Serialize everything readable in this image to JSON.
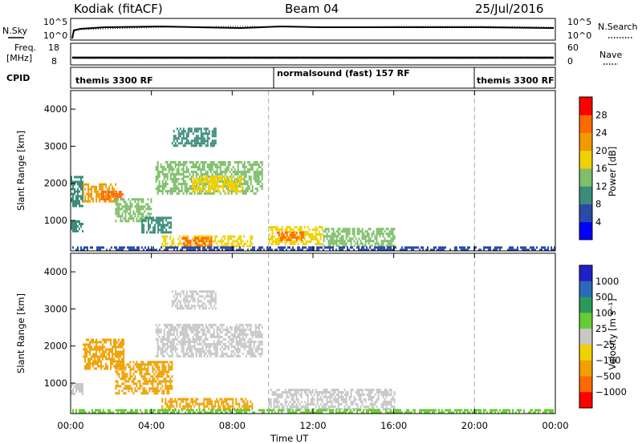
{
  "header": {
    "station": "Kodiak (fitACF)",
    "beam": "Beam 04",
    "date": "25/Jul/2016"
  },
  "strips": {
    "nsky_label": "N.Sky",
    "nsky_ticks": [
      "10^5",
      "10^0"
    ],
    "nsearch_label": "N.Search",
    "nsearch_ticks": [
      "10^5",
      "10^0"
    ],
    "freq_label_1": "Freq.",
    "freq_label_2": "[MHz]",
    "freq_ticks": [
      "18",
      "8"
    ],
    "nave_label": "Nave",
    "nave_ticks": [
      "60",
      "0"
    ],
    "cpid_label": "CPID",
    "modes": [
      {
        "name": "themis 3300 RF",
        "start_h": 0,
        "end_h": 9.8
      },
      {
        "name": "normalsound (fast) 157 RF",
        "start_h": 9.8,
        "end_h": 20
      },
      {
        "name": "themis 3300 RF",
        "start_h": 20,
        "end_h": 24
      }
    ]
  },
  "axes": {
    "ylabel": "Slant Range [km]",
    "yticks": [
      "1000",
      "2000",
      "3000",
      "4000"
    ],
    "xticks": [
      "00:00",
      "04:00",
      "08:00",
      "12:00",
      "16:00",
      "20:00",
      "00:00"
    ],
    "xlabel": "Time UT"
  },
  "power_colorbar": {
    "label": "Power [dB]",
    "ticks": [
      "4",
      "8",
      "12",
      "16",
      "20",
      "24",
      "28"
    ],
    "colors": [
      "#0000ff",
      "#2a4aa8",
      "#3b8c7a",
      "#7fbf6a",
      "#f0d000",
      "#f09a00",
      "#ff6a00",
      "#ff0000"
    ]
  },
  "velocity_colorbar": {
    "label": "Velocity [m s⁻¹]",
    "ticks": [
      "1000",
      "500",
      "100",
      "25",
      "−25",
      "−100",
      "−500",
      "−1000"
    ],
    "colors": [
      "#2020c8",
      "#2a6ab8",
      "#2a9a5a",
      "#66cc33",
      "#c8c8c8",
      "#f0d000",
      "#f0a000",
      "#ff6a00",
      "#ff0000"
    ]
  },
  "chart_data": {
    "type": "heatmap",
    "x_range_hours": [
      0,
      24
    ],
    "y_range_km": [
      180,
      4500
    ],
    "mode_changes_hours": [
      9.8,
      20
    ],
    "power_regions": [
      {
        "t0": 0.0,
        "t1": 0.6,
        "r0": 700,
        "r1": 1000,
        "dB": 8
      },
      {
        "t0": 0.0,
        "t1": 0.6,
        "r0": 1400,
        "r1": 2200,
        "dB": 10
      },
      {
        "t0": 0.6,
        "t1": 2.2,
        "r0": 1500,
        "r1": 2000,
        "dB": 20
      },
      {
        "t0": 1.5,
        "t1": 2.6,
        "r0": 1600,
        "r1": 1800,
        "dB": 26
      },
      {
        "t0": 2.2,
        "t1": 4.0,
        "r0": 1000,
        "r1": 1600,
        "dB": 14
      },
      {
        "t0": 3.5,
        "t1": 5.0,
        "r0": 700,
        "r1": 1100,
        "dB": 10
      },
      {
        "t0": 4.5,
        "t1": 9.0,
        "r0": 300,
        "r1": 600,
        "dB": 18
      },
      {
        "t0": 5.5,
        "t1": 7.0,
        "r0": 350,
        "r1": 550,
        "dB": 24
      },
      {
        "t0": 4.2,
        "t1": 9.5,
        "r0": 1700,
        "r1": 2600,
        "dB": 12
      },
      {
        "t0": 6.0,
        "t1": 8.5,
        "r0": 1800,
        "r1": 2200,
        "dB": 16
      },
      {
        "t0": 5.0,
        "t1": 7.2,
        "r0": 3000,
        "r1": 3500,
        "dB": 8
      },
      {
        "t0": 9.8,
        "t1": 12.5,
        "r0": 350,
        "r1": 850,
        "dB": 16
      },
      {
        "t0": 10.2,
        "t1": 11.5,
        "r0": 450,
        "r1": 700,
        "dB": 26
      },
      {
        "t0": 12.5,
        "t1": 16.0,
        "r0": 300,
        "r1": 800,
        "dB": 12
      },
      {
        "t0": 0.0,
        "t1": 24.0,
        "r0": 180,
        "r1": 300,
        "dB": 6
      }
    ],
    "velocity_regions": [
      {
        "t0": 0.0,
        "t1": 0.6,
        "r0": 700,
        "r1": 1000,
        "v": 0
      },
      {
        "t0": 0.6,
        "t1": 2.6,
        "r0": 1400,
        "r1": 2200,
        "v": -300
      },
      {
        "t0": 2.2,
        "t1": 5.0,
        "r0": 700,
        "r1": 1600,
        "v": -150
      },
      {
        "t0": 4.5,
        "t1": 9.0,
        "r0": 300,
        "r1": 600,
        "v": -120
      },
      {
        "t0": 4.2,
        "t1": 9.5,
        "r0": 1700,
        "r1": 2600,
        "v": 0
      },
      {
        "t0": 5.0,
        "t1": 7.2,
        "r0": 3000,
        "r1": 3500,
        "v": 0
      },
      {
        "t0": 9.8,
        "t1": 16.0,
        "r0": 300,
        "r1": 850,
        "v": 0
      },
      {
        "t0": 0.0,
        "t1": 24.0,
        "r0": 180,
        "r1": 300,
        "v": 80
      }
    ]
  }
}
